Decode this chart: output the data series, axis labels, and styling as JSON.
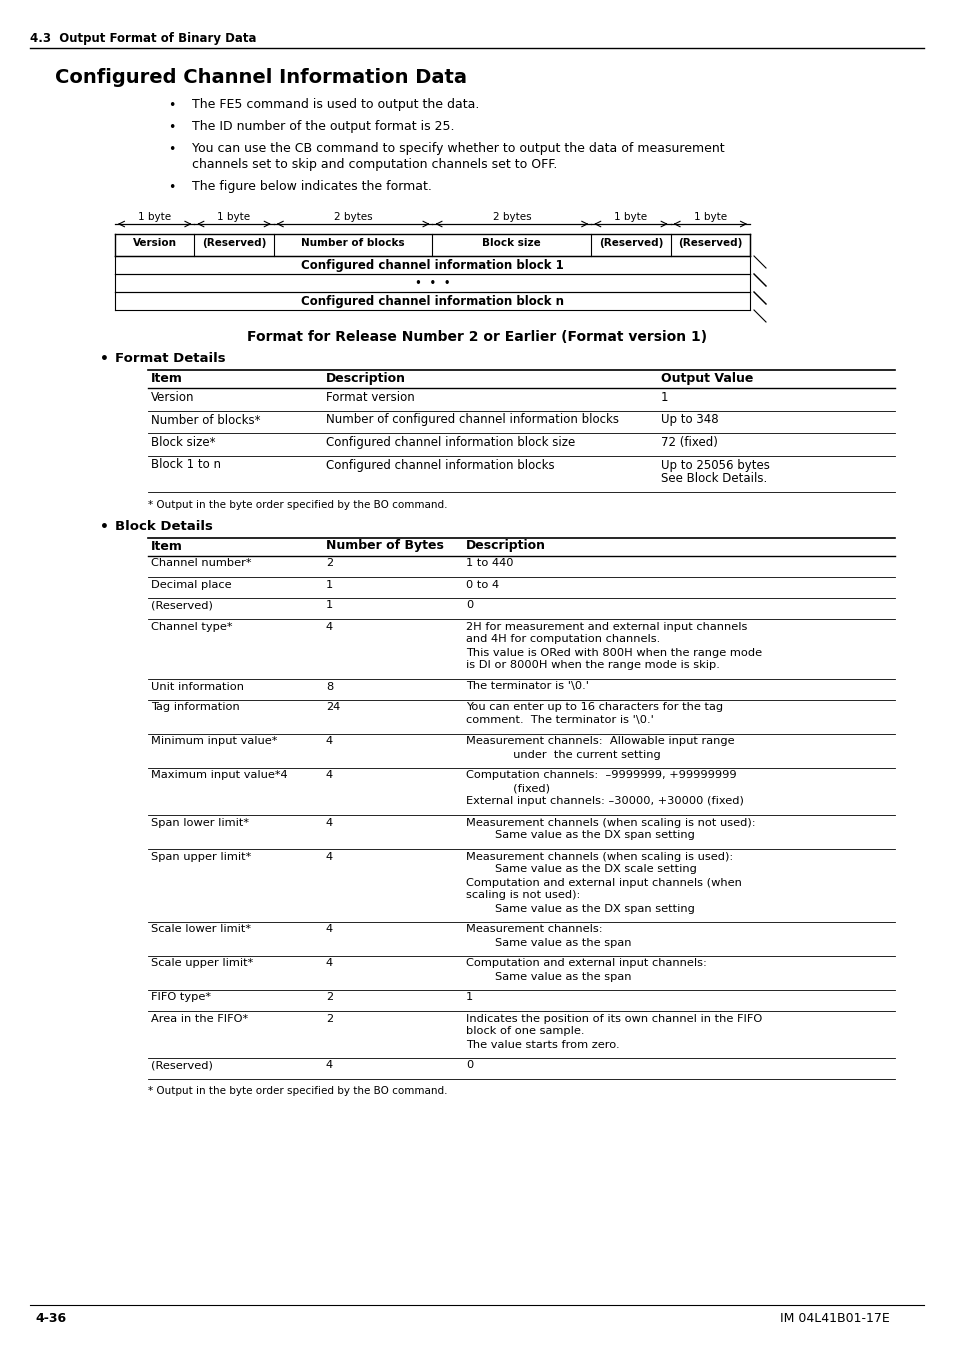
{
  "page_header": "4.3  Output Format of Binary Data",
  "main_title": "Configured Channel Information Data",
  "bullets": [
    "The FE5 command is used to output the data.",
    "The ID number of the output format is 25.",
    "You can use the CB command to specify whether to output the data of measurement\nchannels set to skip and computation channels set to OFF.",
    "The figure below indicates the format."
  ],
  "diagram": {
    "byte_labels": [
      "1 byte",
      "1 byte",
      "2 bytes",
      "2 bytes",
      "1 byte",
      "1 byte"
    ],
    "cell_labels": [
      "Version",
      "(Reserved)",
      "Number of blocks",
      "Block size",
      "(Reserved)",
      "(Reserved)"
    ],
    "row2": "Configured channel information block 1",
    "row3": "•  •  •",
    "row4": "Configured channel information block n"
  },
  "section2_title": "Format for Release Number 2 or Earlier (Format version 1)",
  "format_details_title": "Format Details",
  "format_table_headers": [
    "Item",
    "Description",
    "Output Value"
  ],
  "format_table_rows": [
    [
      "Version",
      "Format version",
      "1"
    ],
    [
      "Number of blocks*",
      "Number of configured channel information blocks",
      "Up to 348"
    ],
    [
      "Block size*",
      "Configured channel information block size",
      "72 (fixed)"
    ],
    [
      "Block 1 to n",
      "Configured channel information blocks",
      "Up to 25056 bytes\nSee Block Details."
    ]
  ],
  "format_note": "* Output in the byte order specified by the BO command.",
  "block_details_title": "Block Details",
  "block_table_headers": [
    "Item",
    "Number of Bytes",
    "Description"
  ],
  "block_table_rows": [
    [
      "Channel number*",
      "2",
      "1 to 440"
    ],
    [
      "Decimal place",
      "1",
      "0 to 4"
    ],
    [
      "(Reserved)",
      "1",
      "0"
    ],
    [
      "Channel type*",
      "4",
      "2H for measurement and external input channels\nand 4H for computation channels.\nThis value is ORed with 800H when the range mode\nis DI or 8000H when the range mode is skip."
    ],
    [
      "Unit information",
      "8",
      "The terminator is '\\0.'"
    ],
    [
      "Tag information",
      "24",
      "You can enter up to 16 characters for the tag\ncomment.  The terminator is '\\0.'"
    ],
    [
      "Minimum input value*",
      "4",
      "Measurement channels:  Allowable input range\n             under  the current setting"
    ],
    [
      "Maximum input value*4",
      "4",
      "Computation channels:  –9999999, +99999999\n             (fixed)\nExternal input channels: –30000, +30000 (fixed)"
    ],
    [
      "Span lower limit*",
      "4",
      "Measurement channels (when scaling is not used):\n        Same value as the DX span setting"
    ],
    [
      "Span upper limit*",
      "4",
      "Measurement channels (when scaling is used):\n        Same value as the DX scale setting\nComputation and external input channels (when\nscaling is not used):\n        Same value as the DX span setting"
    ],
    [
      "Scale lower limit*",
      "4",
      "Measurement channels:\n        Same value as the span"
    ],
    [
      "Scale upper limit*",
      "4",
      "Computation and external input channels:\n        Same value as the span"
    ],
    [
      "FIFO type*",
      "2",
      "1"
    ],
    [
      "Area in the FIFO*",
      "2",
      "Indicates the position of its own channel in the FIFO\nblock of one sample.\nThe value starts from zero."
    ],
    [
      "(Reserved)",
      "4",
      "0"
    ]
  ],
  "block_note": "* Output in the byte order specified by the BO command.",
  "footer_left": "4-36",
  "footer_right": "IM 04L41B01-17E",
  "bg_color": "#ffffff",
  "text_color": "#000000"
}
